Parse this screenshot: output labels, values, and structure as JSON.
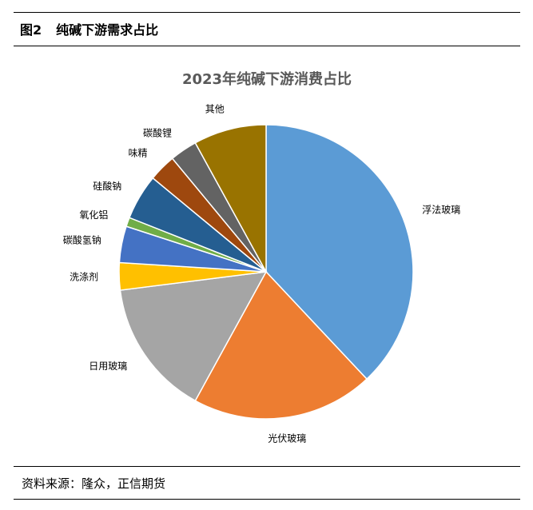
{
  "figure": {
    "label": "图2",
    "title": "纯碱下游需求占比"
  },
  "source_note": "资料来源：隆众，正信期货",
  "chart_data": {
    "type": "pie",
    "title": "2023年纯碱下游消费占比",
    "unit": "%",
    "categories": [
      "浮法玻璃",
      "光伏玻璃",
      "日用玻璃",
      "洗涤剂",
      "碳酸氢钠",
      "氧化铝",
      "硅酸钠",
      "味精",
      "碳酸锂",
      "其他"
    ],
    "values": [
      38,
      20,
      15,
      3,
      4,
      1,
      5,
      3,
      3,
      8
    ],
    "colors": [
      "#5B9BD5",
      "#ED7D31",
      "#A5A5A5",
      "#FFC000",
      "#4472C4",
      "#70AD47",
      "#255E91",
      "#9E480E",
      "#636363",
      "#997300"
    ],
    "start_angle": "12 o'clock",
    "direction": "clockwise",
    "legend": "none",
    "data_labels": "category names outside slices"
  }
}
